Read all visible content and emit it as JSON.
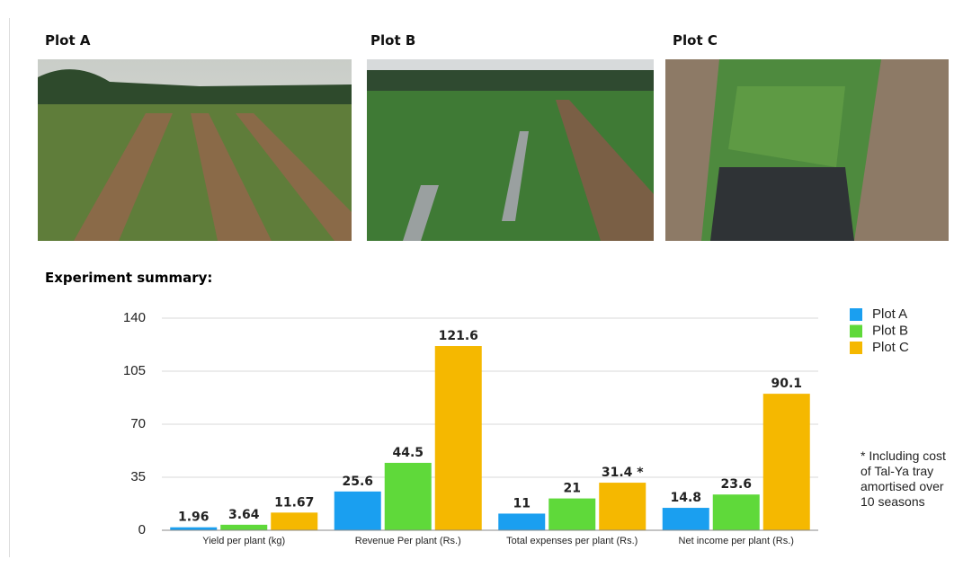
{
  "plots": [
    {
      "label": "Plot A"
    },
    {
      "label": "Plot B"
    },
    {
      "label": "Plot C"
    }
  ],
  "section_title": "Experiment summary:",
  "chart_data": {
    "type": "bar",
    "categories": [
      "Yield per plant (kg)",
      "Revenue Per plant (Rs.)",
      "Total expenses per plant (Rs.)",
      "Net income per plant  (Rs.)"
    ],
    "series": [
      {
        "name": "Plot A",
        "color": "#1a9ff0",
        "values": [
          1.96,
          25.6,
          11,
          14.8
        ]
      },
      {
        "name": "Plot B",
        "color": "#5fd93a",
        "values": [
          3.64,
          44.5,
          21,
          23.6
        ]
      },
      {
        "name": "Plot C",
        "color": "#f5b800",
        "values": [
          11.67,
          121.6,
          31.4,
          90.1
        ],
        "value_labels": [
          "11.67",
          "121.6",
          "31.4 *",
          "90.1"
        ]
      }
    ],
    "ylim": [
      0,
      140
    ],
    "yticks": [
      0,
      35,
      70,
      105,
      140
    ],
    "grid": true,
    "legend": "right",
    "annotation": "* Including cost of Tal-Ya tray amortised over 10 seasons"
  }
}
